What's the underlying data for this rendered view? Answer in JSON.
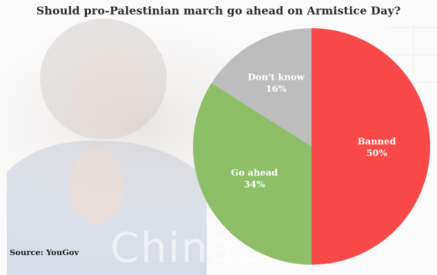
{
  "title": "Should pro-Palestinian march go ahead on Armistice Day?",
  "source": "Source: YouGov",
  "watermark": "China2au",
  "colors": {
    "banned": "#f94848",
    "go_ahead": "#8ebe68",
    "dont_know": "#bdbdbd"
  },
  "chart_data": {
    "type": "pie",
    "title": "Should pro-Palestinian march go ahead on Armistice Day?",
    "slices": [
      {
        "label": "Banned",
        "value": 50,
        "value_label": "50%",
        "color": "#f94848"
      },
      {
        "label": "Go ahead",
        "value": 34,
        "value_label": "34%",
        "color": "#8ebe68"
      },
      {
        "label": "Don't know",
        "value": 16,
        "value_label": "16%",
        "color": "#bdbdbd"
      }
    ],
    "start_angle": "12 o'clock",
    "direction": "clockwise",
    "legend": "none (labels inside slices)"
  }
}
